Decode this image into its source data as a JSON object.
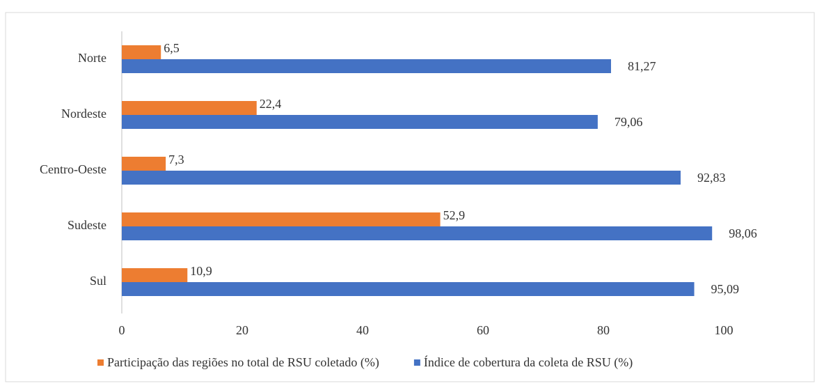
{
  "chart_data": {
    "type": "bar",
    "orientation": "horizontal",
    "categories": [
      "Norte",
      "Nordeste",
      "Centro-Oeste",
      "Sudeste",
      "Sul"
    ],
    "series": [
      {
        "name": "Participação das regiões no total de RSU coletado (%)",
        "color": "#ed7d31",
        "values": [
          6.5,
          22.4,
          7.3,
          52.9,
          10.9
        ],
        "value_labels": [
          "6,5",
          "22,4",
          "7,3",
          "52,9",
          "10,9"
        ]
      },
      {
        "name": "Índice de cobertura da coleta de RSU (%)",
        "color": "#4472c4",
        "values": [
          81.27,
          79.06,
          92.83,
          98.06,
          95.09
        ],
        "value_labels": [
          "81,27",
          "79,06",
          "92,83",
          "98,06",
          "95,09"
        ]
      }
    ],
    "xlim": [
      0,
      100
    ],
    "xticks": [
      0,
      20,
      40,
      60,
      80,
      100
    ],
    "grid": false,
    "legend": "bottom"
  }
}
